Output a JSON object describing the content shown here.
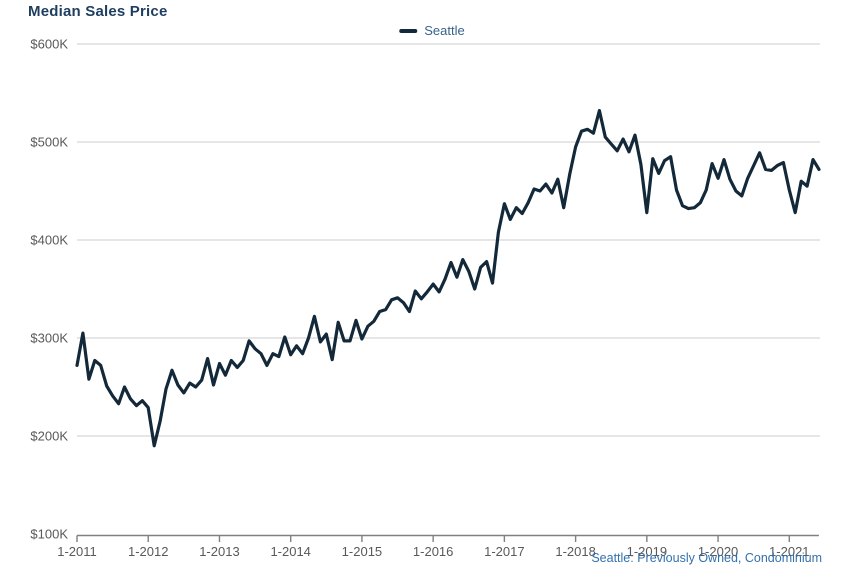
{
  "title": "Median Sales Price",
  "legend": {
    "label": "Seattle"
  },
  "footer": "Seattle: Previously Owned, Condominium",
  "colors": {
    "title": "#1e3d5f",
    "line": "#13293a",
    "legend_text": "#3a628c",
    "footer_text": "#3371ad",
    "axis_labels": "#595959",
    "gridline": "#cccccc",
    "axis_line": "#808080"
  },
  "chart_data": {
    "type": "line",
    "title": "Median Sales Price",
    "xlabel": "",
    "ylabel": "",
    "ylim_usd": [
      100000,
      600000
    ],
    "y_tick_labels": [
      "$100K",
      "$200K",
      "$300K",
      "$400K",
      "$500K",
      "$600K"
    ],
    "y_tick_values_k": [
      100,
      200,
      300,
      400,
      500,
      600
    ],
    "x_tick_labels": [
      "1-2011",
      "1-2012",
      "1-2013",
      "1-2014",
      "1-2015",
      "1-2016",
      "1-2017",
      "1-2018",
      "1-2019",
      "1-2020",
      "1-2021"
    ],
    "x_start_month": "2011-01",
    "x_interval": "monthly",
    "grid": "horizontal-only",
    "legend_position": "top-center",
    "source_note": "Seattle: Previously Owned, Condominium",
    "series": [
      {
        "name": "Seattle",
        "unit": "USD thousands",
        "values": [
          272,
          305,
          258,
          277,
          272,
          251,
          241,
          233,
          250,
          238,
          231,
          236,
          229,
          190,
          215,
          248,
          267,
          252,
          244,
          254,
          250,
          257,
          279,
          252,
          274,
          262,
          277,
          270,
          277,
          297,
          289,
          284,
          272,
          284,
          281,
          301,
          283,
          292,
          284,
          300,
          322,
          296,
          304,
          278,
          316,
          297,
          297,
          318,
          299,
          312,
          317,
          327,
          329,
          339,
          341,
          336,
          327,
          348,
          340,
          347,
          355,
          347,
          360,
          377,
          362,
          380,
          368,
          350,
          372,
          378,
          356,
          408,
          437,
          421,
          433,
          427,
          438,
          452,
          450,
          457,
          448,
          462,
          433,
          467,
          495,
          511,
          513,
          509,
          532,
          505,
          498,
          491,
          503,
          490,
          507,
          477,
          428,
          483,
          468,
          481,
          485,
          451,
          435,
          432,
          433,
          438,
          451,
          478,
          463,
          482,
          462,
          450,
          445,
          463,
          476,
          489,
          472,
          471,
          476,
          479,
          451,
          428,
          460,
          455,
          482,
          472
        ]
      }
    ]
  }
}
